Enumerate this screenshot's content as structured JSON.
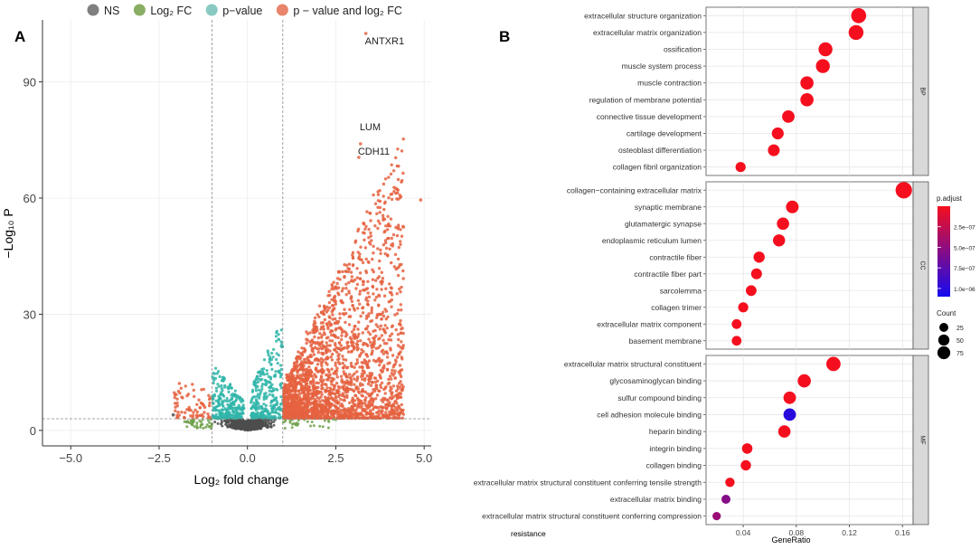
{
  "panel_labels": [
    "A",
    "B"
  ],
  "chart_data": [
    {
      "type": "scatter",
      "subtype": "volcano",
      "legend": [
        {
          "label": "NS",
          "color": "#7f7f7f"
        },
        {
          "label": "Log₂ FC",
          "color": "#88ad63"
        },
        {
          "label": "p−value",
          "color": "#88c9c2"
        },
        {
          "label": "p − value and log₂ FC",
          "color": "#e8856a"
        }
      ],
      "legend_position": "top",
      "xlabel": "Log₂ fold change",
      "ylabel": "−Log₁₀ P",
      "xlim": [
        -5.8,
        5.2
      ],
      "ylim": [
        -4,
        106
      ],
      "x_ticks": [
        -5.0,
        -2.5,
        0.0,
        2.5,
        5.0
      ],
      "x_tick_labels": [
        "−5.0",
        "−2.5",
        "0.0",
        "2.5",
        "5.0"
      ],
      "y_ticks": [
        0,
        30,
        60,
        90
      ],
      "y_tick_labels": [
        "0",
        "30",
        "60",
        "90"
      ],
      "cutoffs": {
        "log2fc": [
          -1,
          1
        ],
        "neg_log10_p": 3
      },
      "labeled_points": [
        {
          "gene": "ANTXR1",
          "x": 3.35,
          "y": 102.5
        },
        {
          "gene": "LUM",
          "x": 3.2,
          "y": 74
        },
        {
          "gene": "CDH11",
          "x": 3.15,
          "y": 70.5
        }
      ],
      "notable_points": [
        {
          "x": 4.9,
          "y": 59.5
        },
        {
          "x": 4.2,
          "y": 62.5
        },
        {
          "x": -2.1,
          "y": 4
        }
      ],
      "colors": {
        "ns": "#4d4d4d",
        "fc": "#6fa04a",
        "p": "#2fb5a9",
        "both": "#e5623f"
      }
    },
    {
      "type": "scatter",
      "subtype": "dotplot",
      "xlabel": "GeneRatio",
      "x_ticks": [
        0.04,
        0.08,
        0.12,
        0.16
      ],
      "x_tick_labels": [
        "0.04",
        "0.08",
        "0.12",
        "0.16"
      ],
      "xlim": [
        0.012,
        0.168
      ],
      "legend_color_title": "p.adjust",
      "legend_color_labels": [
        "2.5e−07",
        "5.0e−07",
        "7.5e−07",
        "1.0e−06"
      ],
      "legend_color_range": [
        0,
        1.1e-06
      ],
      "legend_size_title": "Count",
      "legend_size_labels": [
        "25",
        "50",
        "75"
      ],
      "x_trailing_label": "resistance",
      "facets": [
        {
          "name": "BP",
          "terms": [
            {
              "term": "extracellular structure organization",
              "ratio": 0.127,
              "count": 85,
              "padj": 1e-09
            },
            {
              "term": "extracellular matrix organization",
              "ratio": 0.125,
              "count": 84,
              "padj": 1e-09
            },
            {
              "term": "ossification",
              "ratio": 0.102,
              "count": 70,
              "padj": 1e-09
            },
            {
              "term": "muscle system process",
              "ratio": 0.1,
              "count": 69,
              "padj": 1e-09
            },
            {
              "term": "muscle contraction",
              "ratio": 0.088,
              "count": 60,
              "padj": 1e-09
            },
            {
              "term": "regulation of membrane potential",
              "ratio": 0.088,
              "count": 60,
              "padj": 1e-09
            },
            {
              "term": "connective tissue development",
              "ratio": 0.074,
              "count": 50,
              "padj": 1e-09
            },
            {
              "term": "cartilage development",
              "ratio": 0.066,
              "count": 45,
              "padj": 1e-09
            },
            {
              "term": "osteoblast differentiation",
              "ratio": 0.063,
              "count": 43,
              "padj": 1e-09
            },
            {
              "term": "collagen fibril organization",
              "ratio": 0.038,
              "count": 26,
              "padj": 1e-09
            }
          ]
        },
        {
          "name": "CC",
          "terms": [
            {
              "term": "collagen−containing extracellular matrix",
              "ratio": 0.161,
              "count": 110,
              "padj": 1e-09
            },
            {
              "term": "synaptic membrane",
              "ratio": 0.077,
              "count": 53,
              "padj": 1e-09
            },
            {
              "term": "glutamatergic synapse",
              "ratio": 0.07,
              "count": 48,
              "padj": 1e-09
            },
            {
              "term": "endoplasmic reticulum lumen",
              "ratio": 0.067,
              "count": 46,
              "padj": 1e-09
            },
            {
              "term": "contractile fiber",
              "ratio": 0.052,
              "count": 36,
              "padj": 1e-09
            },
            {
              "term": "contractile fiber part",
              "ratio": 0.05,
              "count": 34,
              "padj": 1e-09
            },
            {
              "term": "sarcolemma",
              "ratio": 0.046,
              "count": 31,
              "padj": 1e-09
            },
            {
              "term": "collagen trimer",
              "ratio": 0.04,
              "count": 27,
              "padj": 1e-09
            },
            {
              "term": "extracellular matrix component",
              "ratio": 0.035,
              "count": 24,
              "padj": 1e-09
            },
            {
              "term": "basement membrane",
              "ratio": 0.035,
              "count": 24,
              "padj": 1e-09
            }
          ]
        },
        {
          "name": "MF",
          "terms": [
            {
              "term": "extracellular matrix structural constituent",
              "ratio": 0.108,
              "count": 74,
              "padj": 1e-09
            },
            {
              "term": "glycosaminoglycan binding",
              "ratio": 0.086,
              "count": 59,
              "padj": 1e-09
            },
            {
              "term": "sulfur compound binding",
              "ratio": 0.075,
              "count": 51,
              "padj": 1e-09
            },
            {
              "term": "cell adhesion molecule binding",
              "ratio": 0.075,
              "count": 51,
              "padj": 1e-06
            },
            {
              "term": "heparin binding",
              "ratio": 0.071,
              "count": 49,
              "padj": 1e-09
            },
            {
              "term": "integrin binding",
              "ratio": 0.043,
              "count": 29,
              "padj": 1e-09
            },
            {
              "term": "collagen binding",
              "ratio": 0.042,
              "count": 28,
              "padj": 1e-09
            },
            {
              "term": "extracellular matrix structural constituent conferring tensile strength",
              "ratio": 0.03,
              "count": 20,
              "padj": 1e-09
            },
            {
              "term": "extracellular matrix binding",
              "ratio": 0.027,
              "count": 18,
              "padj": 5.5e-07
            },
            {
              "term": "extracellular matrix structural constituent conferring compression",
              "ratio": 0.02,
              "count": 13,
              "padj": 4.5e-07
            }
          ]
        }
      ]
    }
  ]
}
